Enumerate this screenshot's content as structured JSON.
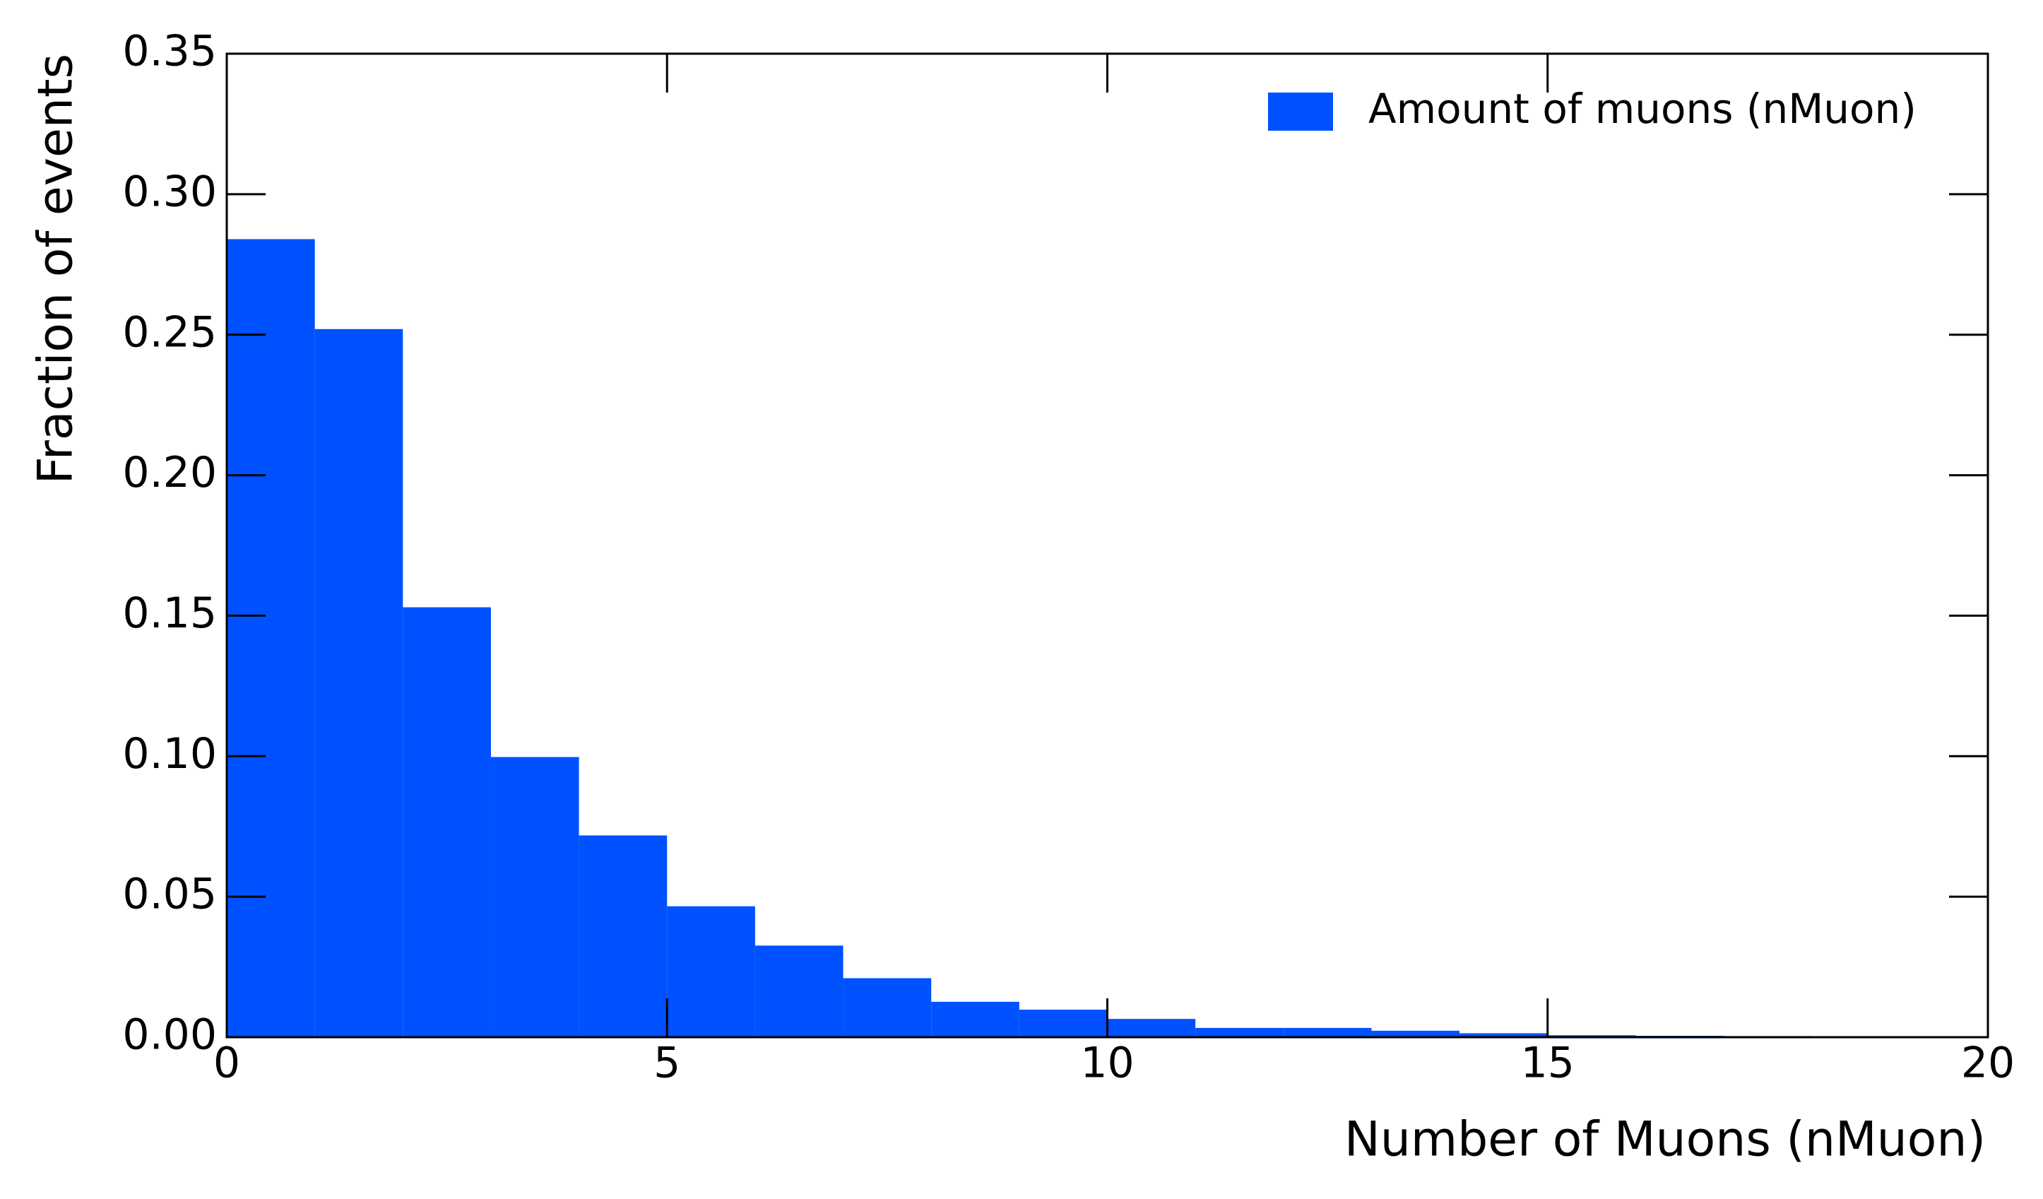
{
  "chart_data": {
    "type": "histogram",
    "xlabel": "Number of Muons (nMuon)",
    "ylabel": "Fraction of events",
    "bins": [
      0,
      1,
      2,
      3,
      4,
      5,
      6,
      7,
      8,
      9,
      10,
      11,
      12,
      13,
      14,
      15,
      16,
      17,
      18,
      19,
      20
    ],
    "series": [
      {
        "name": "Amount of muons (nMuon)",
        "color": "#0051ff",
        "values": [
          0.284,
          0.252,
          0.153,
          0.0997,
          0.0718,
          0.0466,
          0.0326,
          0.021,
          0.0126,
          0.0098,
          0.0065,
          0.0033,
          0.0033,
          0.0023,
          0.0014,
          0.0007,
          0.0005,
          0.0004,
          0.0003,
          0.0002
        ]
      }
    ],
    "xlim": [
      0,
      20
    ],
    "xticks": [
      0,
      5,
      10,
      15,
      20
    ],
    "ylim": [
      0,
      0.35
    ],
    "yticks": [
      {
        "value": 0,
        "label": "0.00"
      },
      {
        "value": 0.05,
        "label": "0.05"
      },
      {
        "value": 0.1,
        "label": "0.10"
      },
      {
        "value": 0.15,
        "label": "0.15"
      },
      {
        "value": 0.2,
        "label": "0.20"
      },
      {
        "value": 0.25,
        "label": "0.25"
      },
      {
        "value": 0.3,
        "label": "0.30"
      },
      {
        "value": 0.35,
        "label": "0.35"
      }
    ],
    "legend": "upper right",
    "grid": false
  }
}
